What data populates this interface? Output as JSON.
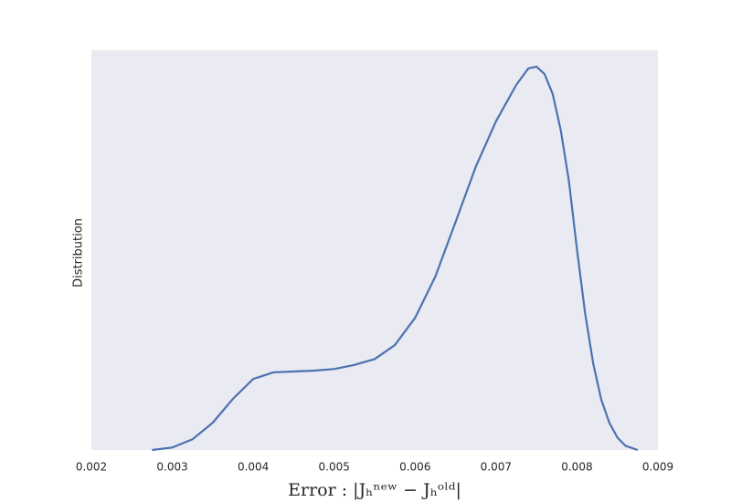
{
  "chart_data": {
    "type": "line",
    "x_label": "Error : |Jₕⁿᵉʷ − Jₕᵒˡᵈ|",
    "y_label": "Distribution",
    "x": [
      0.00275,
      0.003,
      0.00325,
      0.0035,
      0.00375,
      0.004,
      0.00425,
      0.0045,
      0.00475,
      0.005,
      0.00525,
      0.0055,
      0.00575,
      0.006,
      0.00625,
      0.0065,
      0.00675,
      0.007,
      0.00725,
      0.0074,
      0.0075,
      0.0076,
      0.0077,
      0.0078,
      0.0079,
      0.008,
      0.0081,
      0.0082,
      0.0083,
      0.0084,
      0.0085,
      0.0086,
      0.00875
    ],
    "series": [
      {
        "color": "#4c72b0",
        "values": [
          0,
          3,
          13,
          33,
          62,
          86,
          94,
          95,
          96,
          98,
          103,
          110,
          127,
          160,
          210,
          276,
          343,
          398,
          442,
          462,
          464,
          455,
          431,
          387,
          326,
          243,
          166,
          105,
          61,
          33,
          15,
          5,
          0
        ]
      }
    ],
    "xlim": [
      0.002,
      0.009
    ],
    "xticks": [
      0.002,
      0.003,
      0.004,
      0.005,
      0.006,
      0.007,
      0.008,
      0.009
    ],
    "ylim": [
      0,
      484
    ],
    "background": "#eaeaf2"
  }
}
